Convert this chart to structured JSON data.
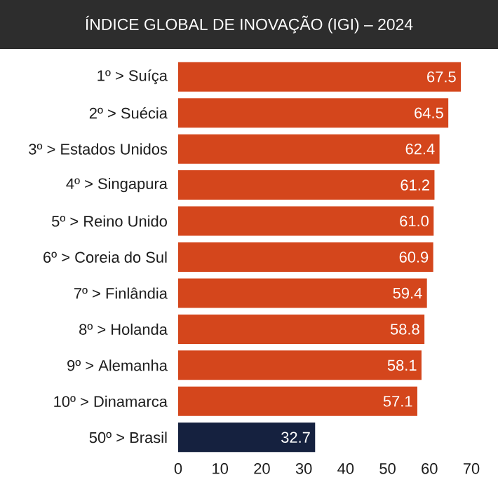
{
  "chart_data": {
    "type": "bar",
    "orientation": "horizontal",
    "title": "ÍNDICE GLOBAL DE INOVAÇÃO (IGI) – 2024",
    "categories": [
      "1º > Suíça",
      "2º > Suécia",
      "3º > Estados Unidos",
      "4º > Singapura",
      "5º > Reino Unido",
      "6º > Coreia do Sul",
      "7º > Finlândia",
      "8º > Holanda",
      "9º > Alemanha",
      "10º > Dinamarca",
      "50º > Brasil"
    ],
    "values": [
      67.5,
      64.5,
      62.4,
      61.2,
      61.0,
      60.9,
      59.4,
      58.8,
      58.1,
      57.1,
      32.7
    ],
    "colors": [
      "#d4461c",
      "#d4461c",
      "#d4461c",
      "#d4461c",
      "#d4461c",
      "#d4461c",
      "#d4461c",
      "#d4461c",
      "#d4461c",
      "#d4461c",
      "#15213f"
    ],
    "value_labels": [
      "67.5",
      "64.5",
      "62.4",
      "61.2",
      "61.0",
      "60.9",
      "59.4",
      "58.8",
      "58.1",
      "57.1",
      "32.7"
    ],
    "xlim": [
      0,
      70
    ],
    "xticks": [
      0,
      10,
      20,
      30,
      40,
      50,
      60,
      70
    ]
  }
}
